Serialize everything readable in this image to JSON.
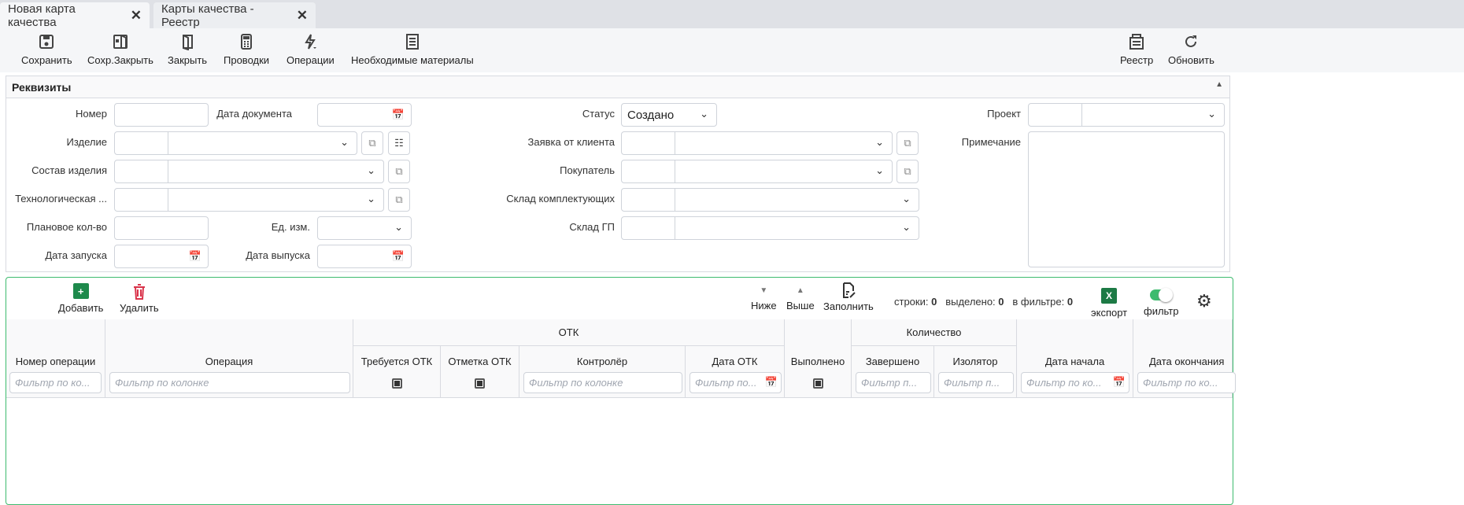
{
  "tabs": [
    {
      "label": "Новая карта качества",
      "active": true
    },
    {
      "label": "Карты качества - Реестр",
      "active": false
    }
  ],
  "toolbar": {
    "save": "Сохранить",
    "save_close": "Сохр.Закрыть",
    "close": "Закрыть",
    "postings": "Проводки",
    "operations": "Операции",
    "materials": "Необходимые материалы",
    "registry": "Реестр",
    "refresh": "Обновить"
  },
  "requisites": {
    "title": "Реквизиты",
    "number": {
      "label": "Номер",
      "value": ""
    },
    "doc_date": {
      "label": "Дата документа",
      "value": ""
    },
    "product": {
      "label": "Изделие"
    },
    "composition": {
      "label": "Состав изделия"
    },
    "tech": {
      "label": "Технологическая ..."
    },
    "planned_qty": {
      "label": "Плановое кол-во",
      "value": ""
    },
    "unit": {
      "label": "Ед. изм."
    },
    "start_date": {
      "label": "Дата запуска"
    },
    "release_date": {
      "label": "Дата выпуска"
    },
    "status": {
      "label": "Статус",
      "value": "Создано"
    },
    "client_request": {
      "label": "Заявка от клиента"
    },
    "buyer": {
      "label": "Покупатель"
    },
    "components_wh": {
      "label": "Склад комплектующих"
    },
    "fg_wh": {
      "label": "Склад ГП"
    },
    "project": {
      "label": "Проект"
    },
    "note": {
      "label": "Примечание",
      "value": ""
    }
  },
  "grid": {
    "add": "Добавить",
    "delete": "Удалить",
    "down": "Ниже",
    "up": "Выше",
    "fill": "Заполнить",
    "rows_label": "строки:",
    "rows": "0",
    "selected_label": "выделено:",
    "selected": "0",
    "filtered_label": "в фильтре:",
    "filtered": "0",
    "export": "экспорт",
    "filter": "фильтр",
    "filter_on": true,
    "groups": {
      "otk": "ОТК",
      "qty": "Количество"
    },
    "columns": [
      "Номер операции",
      "Операция",
      "Требуется ОТК",
      "Отметка ОТК",
      "Контролёр",
      "Дата ОТК",
      "Выполнено",
      "Завершено",
      "Изолятор",
      "Дата начала",
      "Дата окончания"
    ],
    "filter_placeholder": "Фильтр по колонке",
    "filter_short": [
      "Фильтр по ко...",
      "Фильтр по колонке",
      "Фильтр по колонке",
      "Фильтр по...",
      "Фильтр п...",
      "Фильтр п...",
      "Фильтр по ко...",
      "Фильтр по ко..."
    ]
  },
  "colors": {
    "accent_green": "#3dbb6e",
    "excel": "#1d7a45",
    "delete": "#d9334a",
    "add": "#1e8a4c"
  }
}
